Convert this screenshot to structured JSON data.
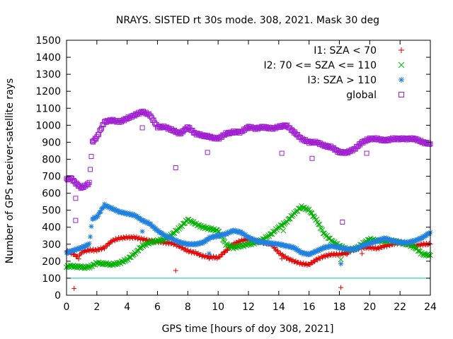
{
  "chart_data": {
    "type": "scatter",
    "title": "NRAYS. SISTED rt 30s mode. 308, 2021. Mask 30 deg",
    "xlabel": "GPS time [hours of doy 308, 2021]",
    "ylabel": "Number of GPS receiver-satellite rays",
    "xlim": [
      0,
      24
    ],
    "ylim": [
      0,
      1500
    ],
    "xticks": [
      0,
      2,
      4,
      6,
      8,
      10,
      12,
      14,
      16,
      18,
      20,
      22,
      24
    ],
    "yticks": [
      0,
      100,
      200,
      300,
      400,
      500,
      600,
      700,
      800,
      900,
      1000,
      1100,
      1200,
      1300,
      1400,
      1500
    ],
    "legend_position": "top-right",
    "threshold_line": {
      "y": 100,
      "color": "#00c0c0"
    },
    "series": [
      {
        "name": "I1: SZA < 70",
        "marker": "plus",
        "color": "#e00000",
        "points": [
          [
            0.0,
            260
          ],
          [
            0.5,
            240
          ],
          [
            0.8,
            220
          ],
          [
            1.0,
            255
          ],
          [
            1.5,
            265
          ],
          [
            2.0,
            265
          ],
          [
            2.5,
            280
          ],
          [
            3.0,
            320
          ],
          [
            3.5,
            335
          ],
          [
            4.0,
            340
          ],
          [
            4.5,
            340
          ],
          [
            5.0,
            330
          ],
          [
            5.5,
            320
          ],
          [
            6.0,
            315
          ],
          [
            6.5,
            310
          ],
          [
            7.0,
            305
          ],
          [
            7.5,
            285
          ],
          [
            8.0,
            260
          ],
          [
            8.5,
            250
          ],
          [
            9.0,
            230
          ],
          [
            9.5,
            225
          ],
          [
            10.0,
            220
          ],
          [
            10.5,
            260
          ],
          [
            11.0,
            300
          ],
          [
            11.5,
            320
          ],
          [
            12.0,
            330
          ],
          [
            12.5,
            320
          ],
          [
            13.0,
            310
          ],
          [
            13.5,
            300
          ],
          [
            14.0,
            250
          ],
          [
            14.5,
            220
          ],
          [
            15.0,
            200
          ],
          [
            15.5,
            185
          ],
          [
            16.0,
            180
          ],
          [
            16.5,
            210
          ],
          [
            17.0,
            230
          ],
          [
            17.5,
            240
          ],
          [
            18.0,
            240
          ],
          [
            18.5,
            250
          ],
          [
            19.0,
            270
          ],
          [
            19.5,
            280
          ],
          [
            20.0,
            280
          ],
          [
            20.5,
            275
          ],
          [
            21.0,
            290
          ],
          [
            21.5,
            300
          ],
          [
            22.0,
            310
          ],
          [
            22.5,
            300
          ],
          [
            23.0,
            290
          ],
          [
            23.5,
            300
          ],
          [
            24.0,
            300
          ],
          [
            0.5,
            40
          ],
          [
            7.2,
            145
          ],
          [
            18.1,
            45
          ],
          [
            18.5,
            240
          ],
          [
            14.2,
            215
          ],
          [
            19.5,
            245
          ],
          [
            9.4,
            215
          ]
        ]
      },
      {
        "name": "I2: 70 <= SZA <= 110",
        "marker": "cross",
        "color": "#00b000",
        "points": [
          [
            0.0,
            170
          ],
          [
            0.5,
            170
          ],
          [
            1.0,
            165
          ],
          [
            1.5,
            165
          ],
          [
            2.0,
            190
          ],
          [
            2.5,
            185
          ],
          [
            3.0,
            180
          ],
          [
            3.5,
            190
          ],
          [
            4.0,
            210
          ],
          [
            4.5,
            245
          ],
          [
            5.0,
            290
          ],
          [
            5.5,
            310
          ],
          [
            6.0,
            320
          ],
          [
            6.5,
            330
          ],
          [
            7.0,
            360
          ],
          [
            7.5,
            400
          ],
          [
            8.0,
            445
          ],
          [
            8.5,
            420
          ],
          [
            9.0,
            400
          ],
          [
            9.5,
            390
          ],
          [
            10.0,
            380
          ],
          [
            10.5,
            300
          ],
          [
            11.0,
            280
          ],
          [
            11.5,
            290
          ],
          [
            12.0,
            300
          ],
          [
            12.5,
            310
          ],
          [
            13.0,
            330
          ],
          [
            13.5,
            360
          ],
          [
            14.0,
            400
          ],
          [
            14.5,
            430
          ],
          [
            15.0,
            480
          ],
          [
            15.5,
            520
          ],
          [
            16.0,
            500
          ],
          [
            16.5,
            440
          ],
          [
            17.0,
            360
          ],
          [
            17.5,
            320
          ],
          [
            18.0,
            290
          ],
          [
            18.5,
            270
          ],
          [
            19.0,
            270
          ],
          [
            19.5,
            300
          ],
          [
            20.0,
            330
          ],
          [
            20.5,
            320
          ],
          [
            21.0,
            320
          ],
          [
            21.5,
            320
          ],
          [
            22.0,
            310
          ],
          [
            22.5,
            300
          ],
          [
            23.0,
            280
          ],
          [
            23.5,
            240
          ],
          [
            24.0,
            235
          ],
          [
            14.3,
            380
          ],
          [
            18.1,
            210
          ]
        ]
      },
      {
        "name": "I3: SZA > 110",
        "marker": "star",
        "color": "#2080e0",
        "points": [
          [
            0.0,
            250
          ],
          [
            0.5,
            265
          ],
          [
            1.0,
            280
          ],
          [
            1.5,
            300
          ],
          [
            1.7,
            450
          ],
          [
            2.0,
            460
          ],
          [
            2.5,
            530
          ],
          [
            3.0,
            510
          ],
          [
            3.5,
            490
          ],
          [
            4.0,
            480
          ],
          [
            4.5,
            470
          ],
          [
            5.0,
            440
          ],
          [
            5.5,
            420
          ],
          [
            6.0,
            380
          ],
          [
            6.5,
            350
          ],
          [
            7.0,
            330
          ],
          [
            7.5,
            310
          ],
          [
            8.0,
            300
          ],
          [
            8.5,
            300
          ],
          [
            9.0,
            310
          ],
          [
            9.5,
            340
          ],
          [
            10.0,
            350
          ],
          [
            10.5,
            360
          ],
          [
            11.0,
            380
          ],
          [
            11.5,
            370
          ],
          [
            12.0,
            340
          ],
          [
            12.5,
            320
          ],
          [
            13.0,
            310
          ],
          [
            13.5,
            305
          ],
          [
            14.0,
            300
          ],
          [
            14.5,
            290
          ],
          [
            15.0,
            280
          ],
          [
            15.5,
            250
          ],
          [
            16.0,
            240
          ],
          [
            16.5,
            260
          ],
          [
            17.0,
            280
          ],
          [
            17.5,
            290
          ],
          [
            18.0,
            280
          ],
          [
            18.5,
            270
          ],
          [
            19.0,
            270
          ],
          [
            19.5,
            290
          ],
          [
            20.0,
            305
          ],
          [
            20.5,
            320
          ],
          [
            21.0,
            335
          ],
          [
            21.5,
            320
          ],
          [
            22.0,
            310
          ],
          [
            22.5,
            310
          ],
          [
            23.0,
            320
          ],
          [
            23.5,
            340
          ],
          [
            24.0,
            370
          ],
          [
            5.0,
            375
          ],
          [
            9.4,
            245
          ],
          [
            18.1,
            185
          ]
        ]
      },
      {
        "name": "global",
        "marker": "square",
        "color": "#a020d0",
        "points": [
          [
            0.0,
            680
          ],
          [
            0.3,
            690
          ],
          [
            0.6,
            660
          ],
          [
            1.0,
            630
          ],
          [
            1.5,
            660
          ],
          [
            1.7,
            900
          ],
          [
            2.0,
            930
          ],
          [
            2.5,
            1020
          ],
          [
            3.0,
            1030
          ],
          [
            3.5,
            1020
          ],
          [
            4.0,
            1040
          ],
          [
            4.5,
            1060
          ],
          [
            5.0,
            1080
          ],
          [
            5.5,
            1060
          ],
          [
            6.0,
            990
          ],
          [
            6.5,
            990
          ],
          [
            7.0,
            970
          ],
          [
            7.5,
            950
          ],
          [
            8.0,
            990
          ],
          [
            8.5,
            950
          ],
          [
            9.0,
            940
          ],
          [
            9.5,
            930
          ],
          [
            10.0,
            920
          ],
          [
            10.5,
            950
          ],
          [
            11.0,
            960
          ],
          [
            11.5,
            960
          ],
          [
            12.0,
            990
          ],
          [
            12.5,
            980
          ],
          [
            13.0,
            990
          ],
          [
            13.5,
            980
          ],
          [
            14.0,
            990
          ],
          [
            14.5,
            1000
          ],
          [
            15.0,
            960
          ],
          [
            15.5,
            920
          ],
          [
            16.0,
            900
          ],
          [
            16.5,
            900
          ],
          [
            17.0,
            880
          ],
          [
            17.5,
            870
          ],
          [
            18.0,
            840
          ],
          [
            18.5,
            840
          ],
          [
            19.0,
            860
          ],
          [
            19.5,
            900
          ],
          [
            20.0,
            920
          ],
          [
            20.5,
            920
          ],
          [
            21.0,
            910
          ],
          [
            21.5,
            920
          ],
          [
            22.0,
            920
          ],
          [
            22.5,
            920
          ],
          [
            23.0,
            920
          ],
          [
            23.5,
            900
          ],
          [
            24.0,
            890
          ],
          [
            0.6,
            440
          ],
          [
            0.6,
            570
          ],
          [
            5.0,
            985
          ],
          [
            7.2,
            750
          ],
          [
            9.3,
            840
          ],
          [
            14.2,
            835
          ],
          [
            16.2,
            805
          ],
          [
            18.2,
            430
          ],
          [
            19.8,
            835
          ]
        ]
      }
    ]
  }
}
